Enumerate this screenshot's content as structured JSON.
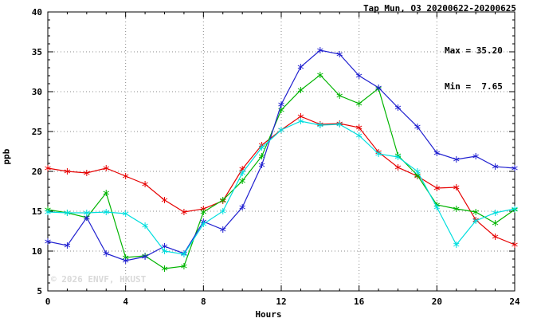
{
  "title": "Tap Mun, O3 20200622-20200625",
  "annotation": {
    "max_label": "Max = 35.20",
    "min_label": "Min =  7.65"
  },
  "watermark": "© 2026 ENVF, HKUST",
  "chart_data": {
    "type": "line",
    "title": "Tap Mun, O3 20200622-20200625",
    "xlabel": "Hours",
    "ylabel": "ppb",
    "xlim": [
      0,
      24
    ],
    "ylim": [
      5,
      40
    ],
    "x_major_ticks": [
      0,
      4,
      8,
      12,
      16,
      20,
      24
    ],
    "y_major_ticks": [
      5,
      10,
      15,
      20,
      25,
      30,
      35,
      40
    ],
    "x_minor_step": 1,
    "y_minor_step": 1,
    "grid": true,
    "legend_position": "none",
    "max_value": 35.2,
    "min_value": 7.65,
    "x": [
      0,
      1,
      2,
      3,
      4,
      5,
      6,
      7,
      8,
      9,
      10,
      11,
      12,
      13,
      14,
      15,
      16,
      17,
      18,
      19,
      20,
      21,
      22,
      23,
      24
    ],
    "series": [
      {
        "name": "red",
        "color": "#e60000",
        "values": [
          20.4,
          20.0,
          19.8,
          20.4,
          19.4,
          18.4,
          16.4,
          14.9,
          15.3,
          16.3,
          20.3,
          23.3,
          25.2,
          26.9,
          25.9,
          26.0,
          25.5,
          22.4,
          20.5,
          19.4,
          17.9,
          18.0,
          13.9,
          11.8,
          10.8
        ]
      },
      {
        "name": "green",
        "color": "#00b400",
        "values": [
          15.2,
          14.8,
          14.2,
          17.3,
          9.2,
          9.4,
          7.8,
          8.1,
          14.9,
          16.4,
          18.8,
          21.9,
          27.7,
          30.2,
          32.1,
          29.5,
          28.5,
          30.4,
          22.0,
          19.5,
          15.8,
          15.3,
          14.9,
          13.5,
          15.2
        ]
      },
      {
        "name": "blue",
        "color": "#2020d0",
        "values": [
          11.2,
          10.7,
          14.2,
          9.7,
          8.8,
          9.3,
          10.6,
          9.7,
          13.7,
          12.7,
          15.5,
          20.8,
          28.4,
          33.1,
          35.2,
          34.7,
          32.0,
          30.5,
          28.0,
          25.6,
          22.3,
          21.5,
          21.9,
          20.6,
          20.4
        ]
      },
      {
        "name": "cyan",
        "color": "#00dede",
        "values": [
          14.9,
          14.8,
          14.8,
          14.9,
          14.7,
          13.2,
          10.0,
          9.6,
          13.4,
          15.0,
          19.8,
          23.0,
          25.2,
          26.3,
          25.8,
          25.9,
          24.5,
          22.2,
          21.8,
          20.0,
          15.5,
          10.8,
          13.8,
          14.8,
          15.3
        ]
      }
    ]
  }
}
